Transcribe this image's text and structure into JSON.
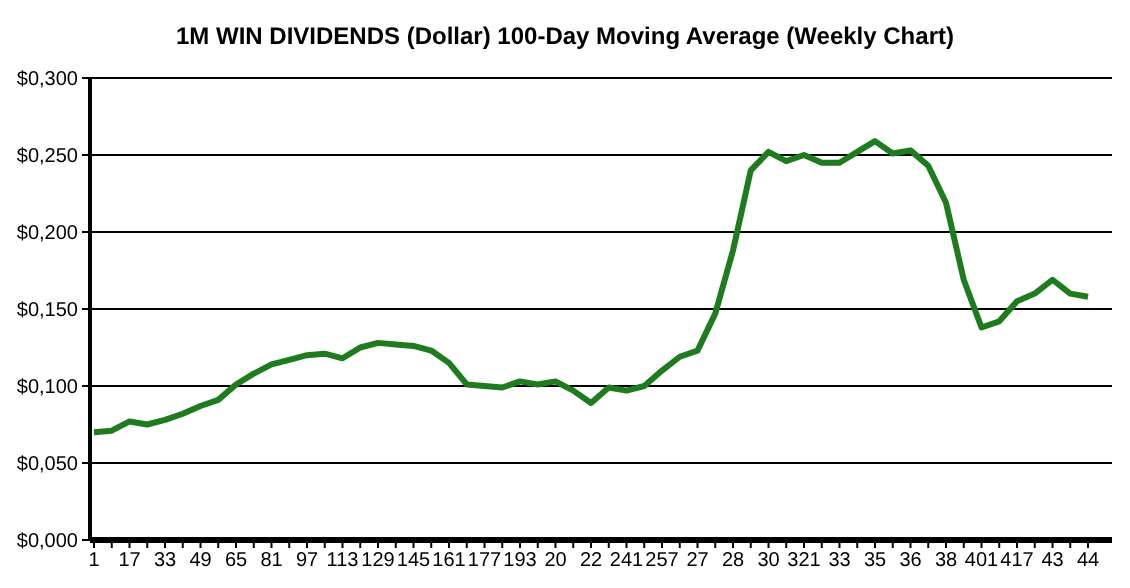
{
  "chart_data": {
    "type": "line",
    "title": "1M WIN DIVIDENDS (Dollar) 100-Day Moving Average (Weekly Chart)",
    "categories": [
      "1",
      null,
      "17",
      null,
      "33",
      null,
      "49",
      null,
      "65",
      null,
      "81",
      null,
      "97",
      null,
      "113",
      null,
      "129",
      null,
      "145",
      null,
      "161",
      null,
      "177",
      null,
      "193",
      null,
      "20",
      null,
      "22",
      null,
      "241",
      null,
      "257",
      null,
      "27",
      null,
      "28",
      null,
      "30",
      null,
      "321",
      null,
      "33",
      null,
      "35",
      null,
      "36",
      null,
      "38",
      null,
      "401",
      null,
      "417",
      null,
      "43",
      null,
      "44"
    ],
    "series": [
      {
        "color": "#1e7b1e",
        "values": [
          0.07,
          0.071,
          0.077,
          0.075,
          0.078,
          0.082,
          0.087,
          0.091,
          0.101,
          0.108,
          0.114,
          0.117,
          0.12,
          0.121,
          0.118,
          0.125,
          0.128,
          0.127,
          0.126,
          0.123,
          0.115,
          0.101,
          0.1,
          0.099,
          0.103,
          0.101,
          0.103,
          0.097,
          0.089,
          0.099,
          0.097,
          0.1,
          0.11,
          0.119,
          0.123,
          0.147,
          0.188,
          0.24,
          0.252,
          0.246,
          0.25,
          0.245,
          0.245,
          0.252,
          0.259,
          0.251,
          0.253,
          0.243,
          0.219,
          0.169,
          0.138,
          0.142,
          0.155,
          0.16,
          0.169,
          0.16,
          0.158
        ]
      }
    ],
    "ylim": [
      0,
      0.3
    ],
    "yticks": [
      {
        "value": 0,
        "label": "$0,000"
      },
      {
        "value": 0.05,
        "label": "$0,050"
      },
      {
        "value": 0.1,
        "label": "$0,100"
      },
      {
        "value": 0.15,
        "label": "$0,150"
      },
      {
        "value": 0.2,
        "label": "$0,200"
      },
      {
        "value": 0.25,
        "label": "$0,250"
      },
      {
        "value": 0.3,
        "label": "$0,300"
      }
    ],
    "grid": "y",
    "marker": "none",
    "line_style": "solid"
  }
}
